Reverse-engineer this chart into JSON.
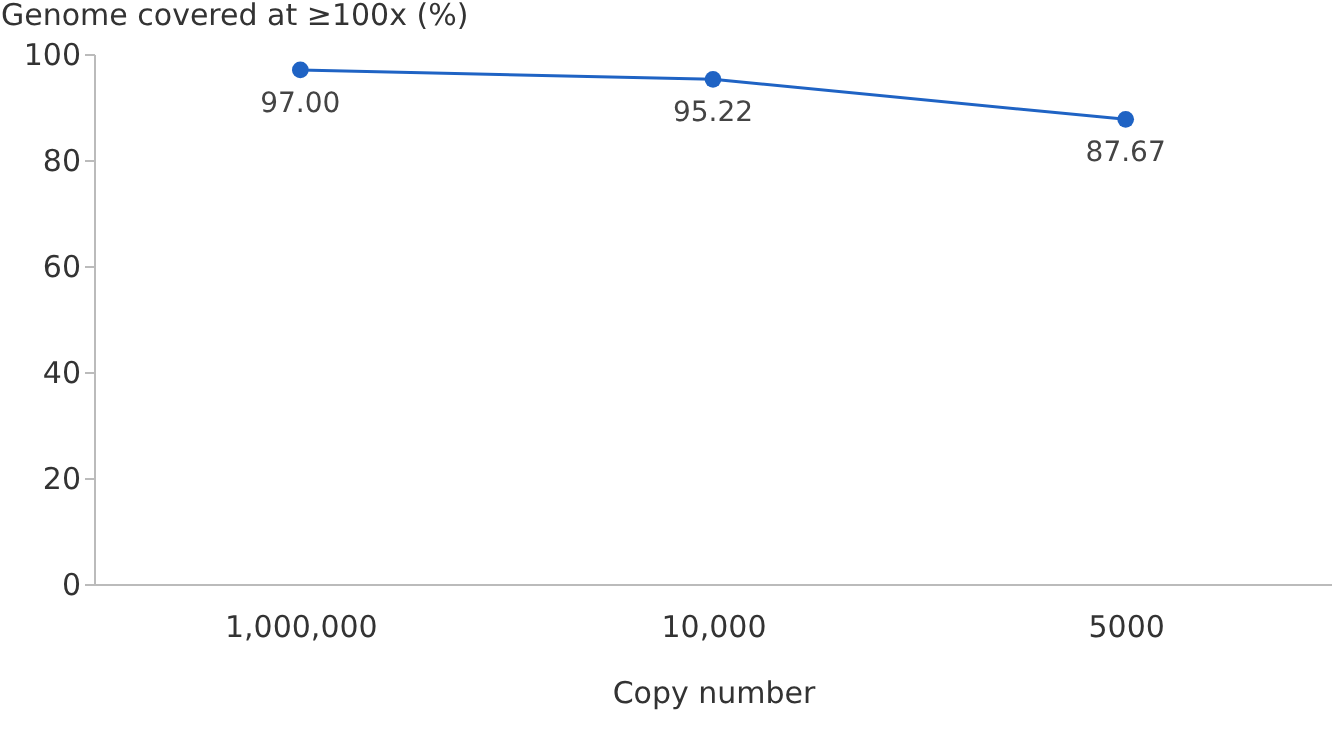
{
  "chart_data": {
    "type": "line",
    "xlabel": "Copy number",
    "ylabel": "Genome covered at ≥100x (%)",
    "categories": [
      "1,000,000",
      "10,000",
      "5000"
    ],
    "series": [
      {
        "color": "#1f63c4",
        "values": [
          97.0,
          95.22,
          87.67
        ],
        "value_labels": [
          "97.00",
          "95.22",
          "87.67"
        ]
      }
    ],
    "ylim": [
      0,
      100
    ],
    "yticks": [
      0,
      20,
      40,
      60,
      80,
      100
    ],
    "grid": false,
    "marker": "circle",
    "line_style": "solid"
  }
}
